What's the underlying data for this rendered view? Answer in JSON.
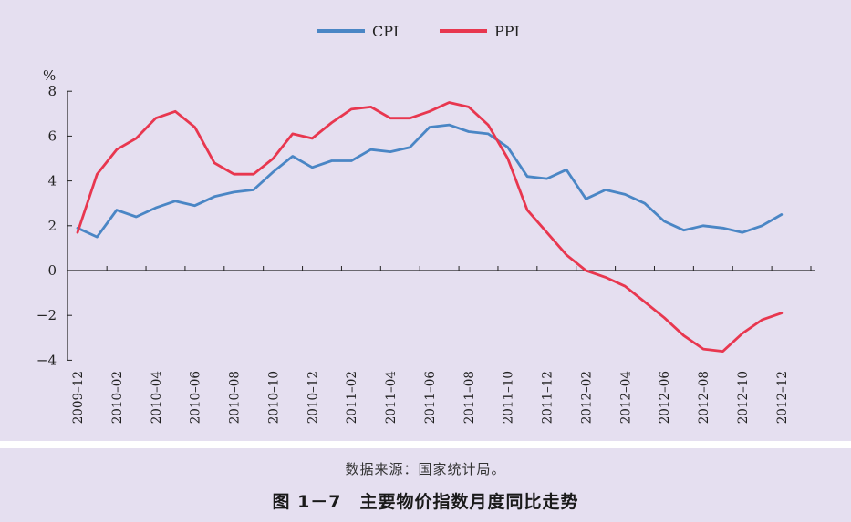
{
  "chart_data": {
    "type": "line",
    "title": "",
    "xlabel": "",
    "ylabel": "%",
    "ylim": [
      -4,
      8
    ],
    "yticks": [
      -4,
      -2,
      0,
      2,
      4,
      6,
      8
    ],
    "ytick_labels": [
      "−4",
      "−2",
      "0",
      "2",
      "4",
      "6",
      "8"
    ],
    "grid": false,
    "legend_position": "top-center",
    "x_tick_labels": [
      "2009–12",
      "2010–02",
      "2010–04",
      "2010–06",
      "2010–08",
      "2010–10",
      "2010–12",
      "2011–02",
      "2011–04",
      "2011–06",
      "2011–08",
      "2011–10",
      "2011–12",
      "2012–02",
      "2012–04",
      "2012–06",
      "2012–08",
      "2012–10",
      "2012–12"
    ],
    "x": [
      "2009-12",
      "2010-01",
      "2010-02",
      "2010-03",
      "2010-04",
      "2010-05",
      "2010-06",
      "2010-07",
      "2010-08",
      "2010-09",
      "2010-10",
      "2010-11",
      "2010-12",
      "2011-01",
      "2011-02",
      "2011-03",
      "2011-04",
      "2011-05",
      "2011-06",
      "2011-07",
      "2011-08",
      "2011-09",
      "2011-10",
      "2011-11",
      "2011-12",
      "2012-01",
      "2012-02",
      "2012-03",
      "2012-04",
      "2012-05",
      "2012-06",
      "2012-07",
      "2012-08",
      "2012-09",
      "2012-10",
      "2012-11",
      "2012-12"
    ],
    "series": [
      {
        "name": "CPI",
        "color": "#4a86c5",
        "values": [
          1.9,
          1.5,
          2.7,
          2.4,
          2.8,
          3.1,
          2.9,
          3.3,
          3.5,
          3.6,
          4.4,
          5.1,
          4.6,
          4.9,
          4.9,
          5.4,
          5.3,
          5.5,
          6.4,
          6.5,
          6.2,
          6.1,
          5.5,
          4.2,
          4.1,
          4.5,
          3.2,
          3.6,
          3.4,
          3.0,
          2.2,
          1.8,
          2.0,
          1.9,
          1.7,
          2.0,
          2.5
        ]
      },
      {
        "name": "PPI",
        "color": "#e8374f",
        "values": [
          1.7,
          4.3,
          5.4,
          5.9,
          6.8,
          7.1,
          6.4,
          4.8,
          4.3,
          4.3,
          5.0,
          6.1,
          5.9,
          6.6,
          7.2,
          7.3,
          6.8,
          6.8,
          7.1,
          7.5,
          7.3,
          6.5,
          5.0,
          2.7,
          1.7,
          0.7,
          0.0,
          -0.3,
          -0.7,
          -1.4,
          -2.1,
          -2.9,
          -3.5,
          -3.6,
          -2.8,
          -2.2,
          -1.9
        ]
      }
    ]
  },
  "source_note": "数据来源：国家统计局。",
  "figure_title": "图 1－7　主要物价指数月度同比走势"
}
